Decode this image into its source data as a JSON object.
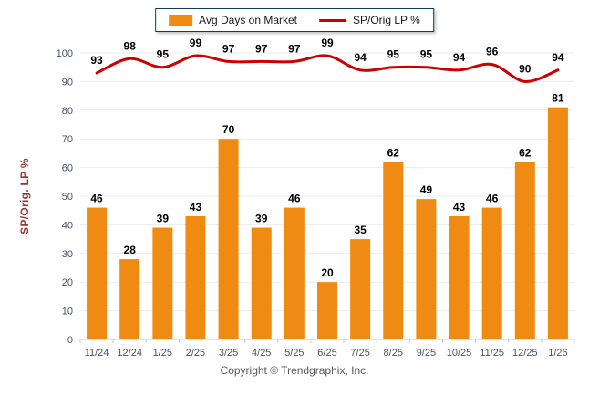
{
  "legend": {
    "bar_label": "Avg Days on Market",
    "line_label": "SP/Orig LP %"
  },
  "ylabel": "SP/Orig. LP %",
  "footer": "Copyright © Trendgraphix, Inc.",
  "colors": {
    "bar": "#EF8B13",
    "line": "#CC0000",
    "legend_border": "#17375E",
    "ylabel_text": "#943634",
    "tick_text": "#44546A",
    "grid": "#EBEBEB",
    "axis": "#C9C9C9",
    "value_label": "#000000",
    "footer_text": "#595959"
  },
  "chart_data": {
    "type": "bar+line",
    "categories": [
      "11/24",
      "12/24",
      "1/25",
      "2/25",
      "3/25",
      "4/25",
      "5/25",
      "6/25",
      "7/25",
      "8/25",
      "9/25",
      "10/25",
      "11/25",
      "12/25",
      "1/26"
    ],
    "series": [
      {
        "name": "Avg Days on Market",
        "type": "bar",
        "values": [
          46,
          28,
          39,
          43,
          70,
          39,
          46,
          20,
          35,
          62,
          49,
          43,
          46,
          62,
          81
        ]
      },
      {
        "name": "SP/Orig LP %",
        "type": "line",
        "values": [
          93,
          98,
          95,
          99,
          97,
          97,
          97,
          99,
          94,
          95,
          95,
          94,
          96,
          90,
          94
        ]
      }
    ],
    "title": "",
    "xlabel": "",
    "ylabel": "SP/Orig. LP %",
    "ylim": [
      0,
      100
    ],
    "yticks": [
      0,
      10,
      20,
      30,
      40,
      50,
      60,
      70,
      80,
      90,
      100
    ],
    "grid": true,
    "legend_position": "top-center"
  }
}
